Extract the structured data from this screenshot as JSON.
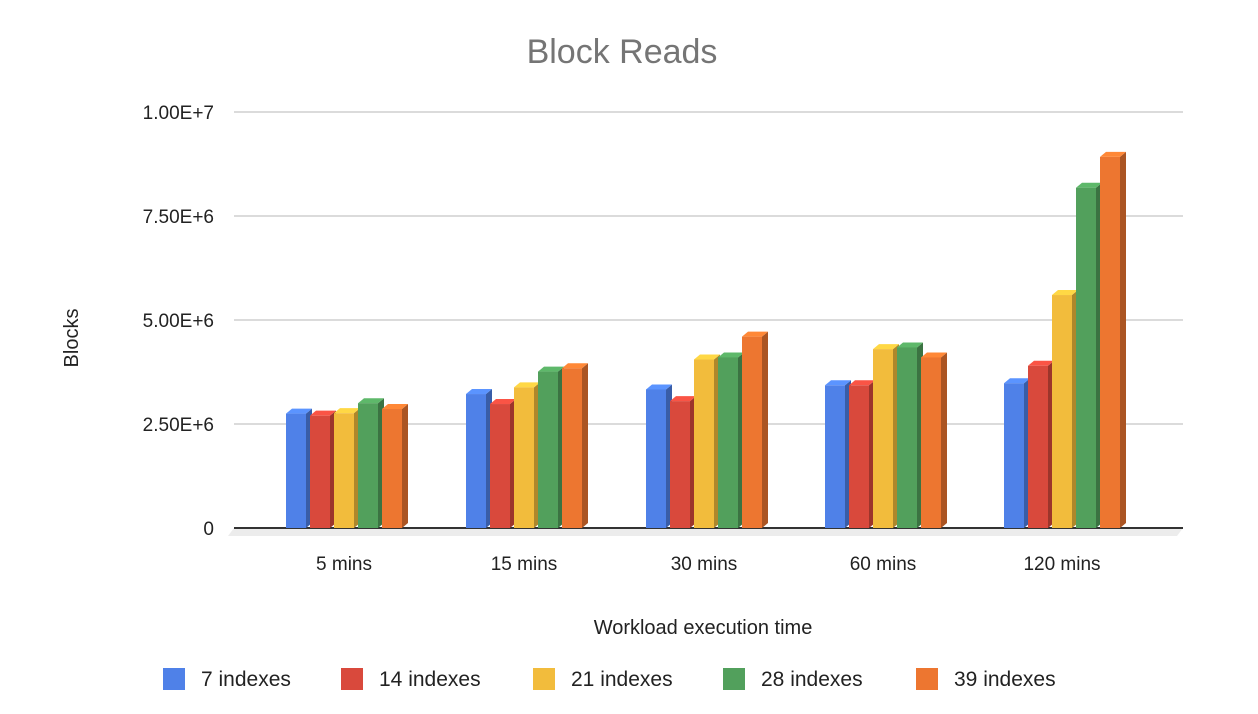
{
  "chart_data": {
    "type": "bar",
    "title": "Block Reads",
    "xlabel": "Workload execution time",
    "ylabel": "Blocks",
    "categories": [
      "5 mins",
      "15 mins",
      "30 mins",
      "60 mins",
      "120 mins"
    ],
    "yticks": [
      "0",
      "2.50E+6",
      "5.00E+6",
      "7.50E+6",
      "1.00E+7"
    ],
    "ylim": [
      0,
      10000000
    ],
    "grid": true,
    "legend_position": "bottom",
    "series": [
      {
        "name": "7 indexes",
        "color": "#4f81e8",
        "values": [
          2750000,
          3220000,
          3330000,
          3430000,
          3480000
        ]
      },
      {
        "name": "14 indexes",
        "color": "#d9493c",
        "values": [
          2700000,
          2980000,
          3050000,
          3430000,
          3900000
        ]
      },
      {
        "name": "21 indexes",
        "color": "#f2bc3c",
        "values": [
          2760000,
          3380000,
          4050000,
          4300000,
          5600000
        ]
      },
      {
        "name": "28 indexes",
        "color": "#52a05c",
        "values": [
          3000000,
          3760000,
          4100000,
          4340000,
          8180000
        ]
      },
      {
        "name": "39 indexes",
        "color": "#ed7630",
        "values": [
          2860000,
          3840000,
          4600000,
          4100000,
          8920000
        ]
      }
    ]
  }
}
